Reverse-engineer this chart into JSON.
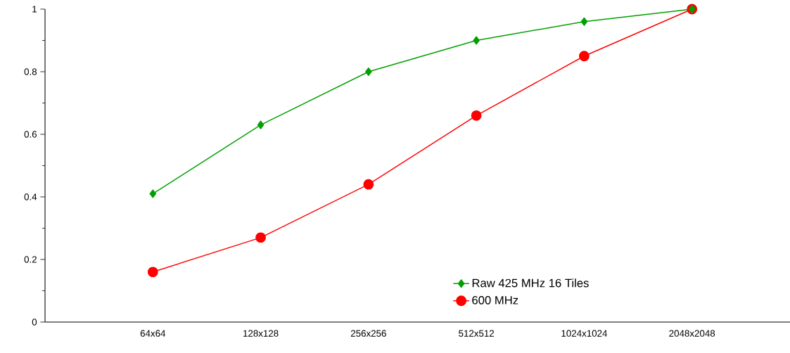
{
  "chart_data": {
    "type": "line",
    "categories": [
      "64x64",
      "128x128",
      "256x256",
      "512x512",
      "1024x1024",
      "2048x2048"
    ],
    "series": [
      {
        "name": "Raw 425 MHz 16 Tiles",
        "color": "#00a000",
        "marker": "diamond",
        "values": [
          0.41,
          0.63,
          0.8,
          0.9,
          0.96,
          1.0
        ]
      },
      {
        "name": "600 MHz",
        "color": "#ff0000",
        "marker": "circle",
        "values": [
          0.16,
          0.27,
          0.44,
          0.66,
          0.85,
          1.0
        ]
      }
    ],
    "ylim": [
      0,
      1
    ],
    "yticks": [
      0,
      0.2,
      0.4,
      0.6,
      0.8,
      1
    ],
    "grid": false,
    "legend": "bottom right",
    "line_style": "solid"
  }
}
